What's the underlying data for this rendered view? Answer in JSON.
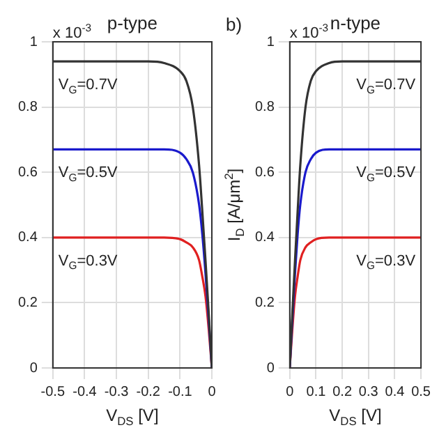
{
  "chart_data": [
    {
      "type": "line",
      "title": "p-type",
      "xlabel": "V$_{DS}$ [V]",
      "annotations": [
        "x 10$^{-3}$"
      ],
      "xlim": [
        -0.5,
        0
      ],
      "xticks": [
        -0.5,
        -0.4,
        -0.3,
        -0.2,
        -0.1,
        0
      ],
      "ylim": [
        0,
        1
      ],
      "yticks": [
        0,
        0.2,
        0.4,
        0.6,
        0.8,
        1
      ],
      "grid": true,
      "legend": false,
      "marker": "none",
      "line_style": "solid",
      "x": [
        -0.5,
        -0.4,
        -0.3,
        -0.2,
        -0.15,
        -0.1,
        -0.08,
        -0.06,
        -0.04,
        -0.03,
        -0.02,
        -0.01,
        0
      ],
      "series": [
        {
          "name": "V$_{G}$=0.7V",
          "color": "#333333",
          "values": [
            0.94,
            0.94,
            0.94,
            0.94,
            0.935,
            0.91,
            0.88,
            0.8,
            0.62,
            0.48,
            0.33,
            0.17,
            0
          ]
        },
        {
          "name": "V$_{G}$=0.5V",
          "color": "#1a1acc",
          "values": [
            0.67,
            0.67,
            0.67,
            0.67,
            0.67,
            0.66,
            0.64,
            0.6,
            0.5,
            0.41,
            0.29,
            0.15,
            0
          ]
        },
        {
          "name": "V$_{G}$=0.3V",
          "color": "#e02020",
          "values": [
            0.4,
            0.4,
            0.4,
            0.4,
            0.4,
            0.395,
            0.385,
            0.37,
            0.33,
            0.28,
            0.22,
            0.12,
            0
          ]
        }
      ]
    },
    {
      "type": "line",
      "title": "n-type",
      "xlabel": "V$_{DS}$ [V]",
      "ylabel": "I$_{D}$ [A/μm$^{2}$]",
      "annotations": [
        "b)",
        "x 10$^{-3}$"
      ],
      "xlim": [
        0,
        0.5
      ],
      "xticks": [
        0,
        0.1,
        0.2,
        0.3,
        0.4,
        0.5
      ],
      "ylim": [
        0,
        1
      ],
      "yticks": [
        0,
        0.2,
        0.4,
        0.6,
        0.8,
        1
      ],
      "grid": true,
      "legend": false,
      "marker": "none",
      "line_style": "solid",
      "x": [
        0,
        0.01,
        0.02,
        0.03,
        0.04,
        0.06,
        0.08,
        0.1,
        0.15,
        0.2,
        0.3,
        0.4,
        0.5
      ],
      "series": [
        {
          "name": "V$_{G}$=0.7V",
          "color": "#333333",
          "values": [
            0,
            0.17,
            0.33,
            0.48,
            0.62,
            0.8,
            0.88,
            0.91,
            0.935,
            0.94,
            0.94,
            0.94,
            0.94
          ]
        },
        {
          "name": "V$_{G}$=0.5V",
          "color": "#1a1acc",
          "values": [
            0,
            0.15,
            0.29,
            0.41,
            0.5,
            0.6,
            0.64,
            0.66,
            0.67,
            0.67,
            0.67,
            0.67,
            0.67
          ]
        },
        {
          "name": "V$_{G}$=0.3V",
          "color": "#e02020",
          "values": [
            0,
            0.12,
            0.22,
            0.28,
            0.33,
            0.37,
            0.385,
            0.395,
            0.4,
            0.4,
            0.4,
            0.4,
            0.4
          ]
        }
      ]
    }
  ]
}
